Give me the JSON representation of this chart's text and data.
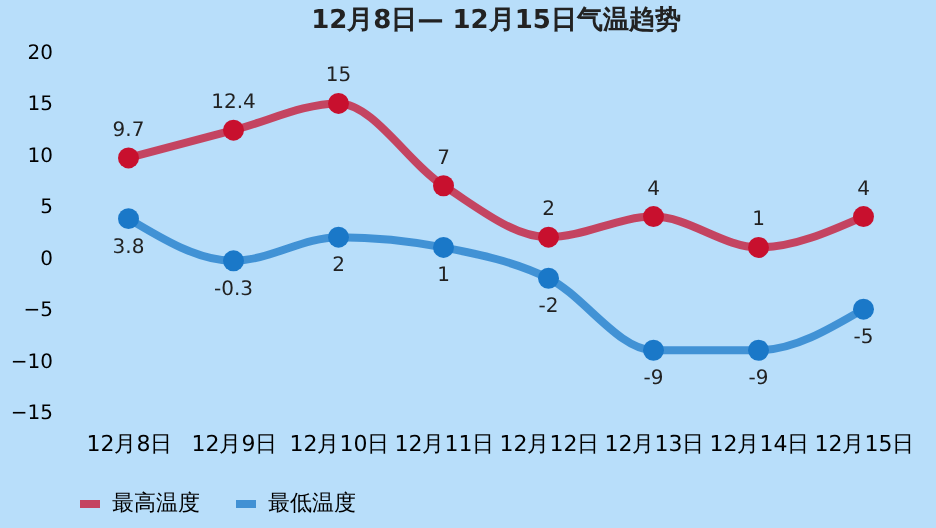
{
  "chart_data": {
    "type": "line",
    "title": "12月8日— 12月15日气温趋势",
    "categories": [
      "12月8日",
      "12月9日",
      "12月10日",
      "12月11日",
      "12月12日",
      "12月13日",
      "12月14日",
      "12月15日"
    ],
    "series": [
      {
        "name": "最高温度",
        "color": "#c8102e",
        "values": [
          9.7,
          12.4,
          15,
          7,
          2,
          4,
          1,
          4
        ]
      },
      {
        "name": "最低温度",
        "color": "#1a78c8",
        "values": [
          3.8,
          -0.3,
          2,
          1,
          -2,
          -9,
          -9,
          -5
        ]
      }
    ],
    "ylim": [
      -15,
      20
    ],
    "yticks": [
      -15,
      -10,
      -5,
      0,
      5,
      10,
      15,
      20
    ],
    "grid": false,
    "legend": "bottom",
    "marker": "circle",
    "line_style": "solid",
    "data_labels": true
  }
}
